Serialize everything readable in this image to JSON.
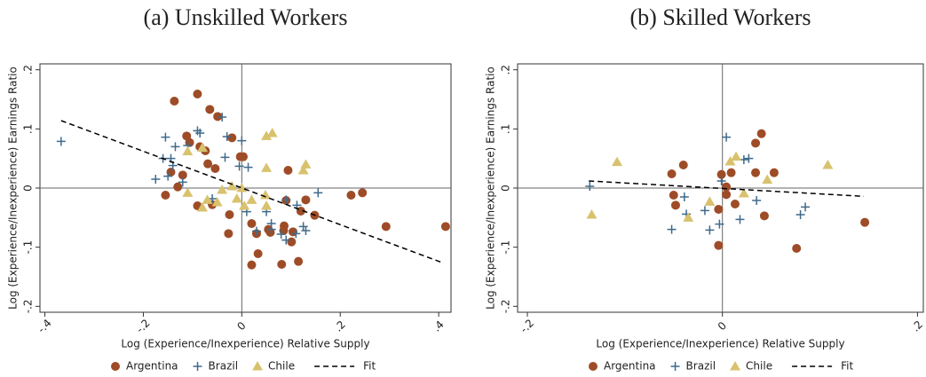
{
  "chart_data": [
    {
      "type": "scatter",
      "title": "(a) Unskilled Workers",
      "xlabel": "Log (Experience/Inexperience) Relative Supply",
      "ylabel": "Log (Experience/Inexperience) Earnings Ratio",
      "xlim": [
        -0.41,
        0.425
      ],
      "ylim": [
        -0.21,
        0.21
      ],
      "xticks": [
        {
          "value": -0.4,
          "label": "-.4"
        },
        {
          "value": -0.2,
          "label": "-.2"
        },
        0,
        {
          "value": 0.2,
          "label": ".2"
        },
        {
          "value": 0.4,
          "label": ".4"
        }
      ],
      "yticks": [
        {
          "value": -0.2,
          "label": "-.2"
        },
        {
          "value": -0.1,
          "label": "-.1"
        },
        0,
        {
          "value": 0.1,
          "label": ".1"
        },
        {
          "value": 0.2,
          "label": ".2"
        }
      ],
      "refline_x": 0,
      "refline_y": 0,
      "series": [
        {
          "name": "Argentina",
          "marker": "circle",
          "color": "#9e4c27",
          "x": [
            -0.137,
            -0.09,
            -0.065,
            -0.049,
            -0.112,
            -0.106,
            -0.085,
            -0.074,
            -0.02,
            -0.003,
            0.003,
            -0.069,
            -0.054,
            -0.144,
            -0.12,
            -0.13,
            -0.155,
            -0.09,
            -0.06,
            -0.025,
            -0.027,
            0.02,
            0.03,
            0.033,
            0.02,
            0.054,
            0.086,
            0.085,
            0.104,
            0.09,
            0.094,
            0.12,
            0.101,
            0.081,
            0.115,
            0.148,
            0.13,
            0.222,
            0.245,
            0.293,
            0.414,
            0.058
          ],
          "y": [
            0.147,
            0.159,
            0.133,
            0.121,
            0.088,
            0.077,
            0.07,
            0.063,
            0.085,
            0.053,
            0.053,
            0.041,
            0.033,
            0.027,
            0.022,
            0.002,
            -0.012,
            -0.03,
            -0.028,
            -0.045,
            -0.077,
            -0.06,
            -0.077,
            -0.111,
            -0.13,
            -0.07,
            -0.064,
            -0.072,
            -0.074,
            -0.021,
            0.03,
            -0.039,
            -0.091,
            -0.129,
            -0.124,
            -0.046,
            -0.02,
            -0.012,
            -0.008,
            -0.065,
            -0.065,
            -0.075
          ]
        },
        {
          "name": "Brazil",
          "marker": "plus",
          "color": "#3f6a8c",
          "x": [
            -0.367,
            -0.155,
            -0.16,
            -0.144,
            -0.175,
            -0.14,
            -0.135,
            -0.11,
            -0.09,
            -0.085,
            -0.04,
            -0.03,
            0.0,
            -0.034,
            -0.005,
            0.013,
            -0.12,
            -0.15,
            -0.06,
            0.01,
            0.05,
            0.03,
            0.06,
            0.08,
            0.09,
            0.11,
            0.125,
            0.13,
            0.112,
            0.155,
            0.09,
            0.06
          ],
          "y": [
            0.079,
            0.086,
            0.05,
            0.05,
            0.015,
            0.038,
            0.07,
            0.072,
            0.097,
            0.093,
            0.12,
            0.087,
            0.08,
            0.052,
            0.037,
            0.035,
            0.01,
            0.02,
            -0.018,
            -0.04,
            -0.04,
            -0.073,
            -0.07,
            -0.078,
            -0.088,
            -0.077,
            -0.065,
            -0.072,
            -0.029,
            -0.008,
            -0.02,
            -0.06
          ]
        },
        {
          "name": "Chile",
          "marker": "triangle",
          "color": "#d8c26e",
          "x": [
            -0.11,
            -0.08,
            -0.11,
            -0.07,
            -0.08,
            -0.05,
            -0.04,
            -0.02,
            0.0,
            -0.01,
            0.02,
            0.005,
            0.05,
            0.048,
            0.05,
            0.05,
            0.062,
            0.125,
            0.13
          ],
          "y": [
            0.062,
            0.068,
            -0.008,
            -0.02,
            -0.033,
            -0.024,
            -0.003,
            0.003,
            0.0,
            -0.018,
            -0.02,
            -0.03,
            -0.03,
            -0.012,
            0.034,
            0.088,
            0.093,
            0.03,
            0.04
          ]
        },
        {
          "name": "Fit",
          "marker": "dashed-line",
          "color": "#000000",
          "x": [
            -0.367,
            0.41
          ],
          "y": [
            0.114,
            -0.127
          ]
        }
      ]
    },
    {
      "type": "scatter",
      "title": "(b) Skilled Workers",
      "xlabel": "Log (Experience/Inexperience) Relative Supply",
      "ylabel": "Log (Experience/Inexperience) Earnings Ratio",
      "xlim": [
        -0.21,
        0.206
      ],
      "ylim": [
        -0.21,
        0.21
      ],
      "xticks": [
        {
          "value": -0.2,
          "label": "-.2"
        },
        0,
        {
          "value": 0.2,
          "label": ".2"
        }
      ],
      "yticks": [
        {
          "value": -0.2,
          "label": "-.2"
        },
        {
          "value": -0.1,
          "label": "-.1"
        },
        0,
        {
          "value": 0.1,
          "label": ".1"
        },
        {
          "value": 0.2,
          "label": ".2"
        }
      ],
      "refline_x": 0,
      "refline_y": 0,
      "series": [
        {
          "name": "Argentina",
          "marker": "circle",
          "color": "#9e4c27",
          "x": [
            -0.052,
            -0.04,
            -0.05,
            -0.048,
            -0.001,
            0.004,
            0.009,
            -0.004,
            -0.004,
            0.004,
            0.013,
            0.034,
            0.04,
            0.034,
            0.053,
            0.043,
            0.076,
            0.146
          ],
          "y": [
            0.024,
            0.039,
            -0.012,
            -0.029,
            0.023,
            0.002,
            0.026,
            -0.036,
            -0.097,
            -0.011,
            -0.027,
            0.076,
            0.092,
            0.026,
            0.026,
            -0.047,
            -0.102,
            -0.058
          ]
        },
        {
          "name": "Brazil",
          "marker": "plus",
          "color": "#3f6a8c",
          "x": [
            -0.136,
            -0.052,
            -0.039,
            -0.037,
            -0.018,
            -0.013,
            -0.003,
            -0.001,
            0.004,
            0.022,
            0.027,
            0.018,
            0.035,
            0.08,
            0.085
          ],
          "y": [
            0.003,
            -0.07,
            -0.015,
            -0.044,
            -0.038,
            -0.071,
            -0.061,
            0.012,
            0.086,
            0.048,
            0.05,
            -0.053,
            -0.021,
            -0.045,
            -0.032
          ]
        },
        {
          "name": "Chile",
          "marker": "triangle",
          "color": "#d8c26e",
          "x": [
            -0.134,
            -0.108,
            -0.035,
            -0.013,
            0.008,
            0.014,
            0.022,
            0.046,
            0.108
          ],
          "y": [
            -0.045,
            0.044,
            -0.05,
            -0.023,
            0.045,
            0.053,
            -0.009,
            0.014,
            0.039
          ]
        },
        {
          "name": "Fit",
          "marker": "dashed-line",
          "color": "#000000",
          "x": [
            -0.137,
            0.145
          ],
          "y": [
            0.012,
            -0.014
          ]
        }
      ]
    }
  ]
}
